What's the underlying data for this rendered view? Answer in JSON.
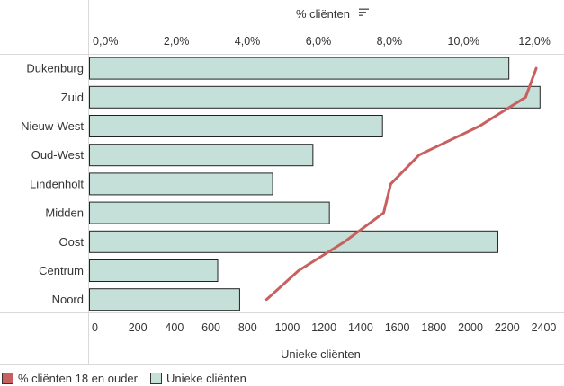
{
  "chart_data": {
    "type": "bar",
    "orientation": "horizontal",
    "categories": [
      "Dukenburg",
      "Zuid",
      "Nieuw-West",
      "Oud-West",
      "Lindenholt",
      "Midden",
      "Oost",
      "Centrum",
      "Noord"
    ],
    "series": [
      {
        "name": "Unieke cliënten",
        "type": "bar",
        "axis": "bottom",
        "color": "#c4e0d8",
        "values": [
          2290,
          2460,
          1600,
          1220,
          1000,
          1310,
          2230,
          700,
          820
        ]
      },
      {
        "name": "% cliënten 18 en ouder",
        "type": "line",
        "axis": "top",
        "color": "#c8605f",
        "values": [
          12.5,
          12.2,
          10.9,
          9.2,
          8.4,
          8.2,
          7.1,
          5.8,
          4.9
        ]
      }
    ],
    "top_axis": {
      "label": "% cliënten",
      "ticks": [
        "0,0%",
        "2,0%",
        "4,0%",
        "6,0%",
        "8,0%",
        "10,0%",
        "12,0%"
      ],
      "tick_values": [
        0,
        2,
        4,
        6,
        8,
        10,
        12
      ],
      "range": [
        0,
        12.6
      ]
    },
    "bottom_axis": {
      "label": "Unieke cliënten",
      "ticks": [
        "0",
        "200",
        "400",
        "600",
        "800",
        "1000",
        "1200",
        "1400",
        "1600",
        "1800",
        "2000",
        "2200",
        "2400"
      ],
      "tick_values": [
        0,
        200,
        400,
        600,
        800,
        1000,
        1200,
        1400,
        1600,
        1800,
        2000,
        2200,
        2400
      ],
      "range": [
        0,
        2480
      ]
    },
    "legend": {
      "position": "bottom-left",
      "items": [
        {
          "label": "% cliënten 18 en ouder",
          "color": "#c8605f"
        },
        {
          "label": "Unieke cliënten",
          "color": "#c4e0d8"
        }
      ]
    },
    "sort_icon": "sort-descending-icon"
  }
}
